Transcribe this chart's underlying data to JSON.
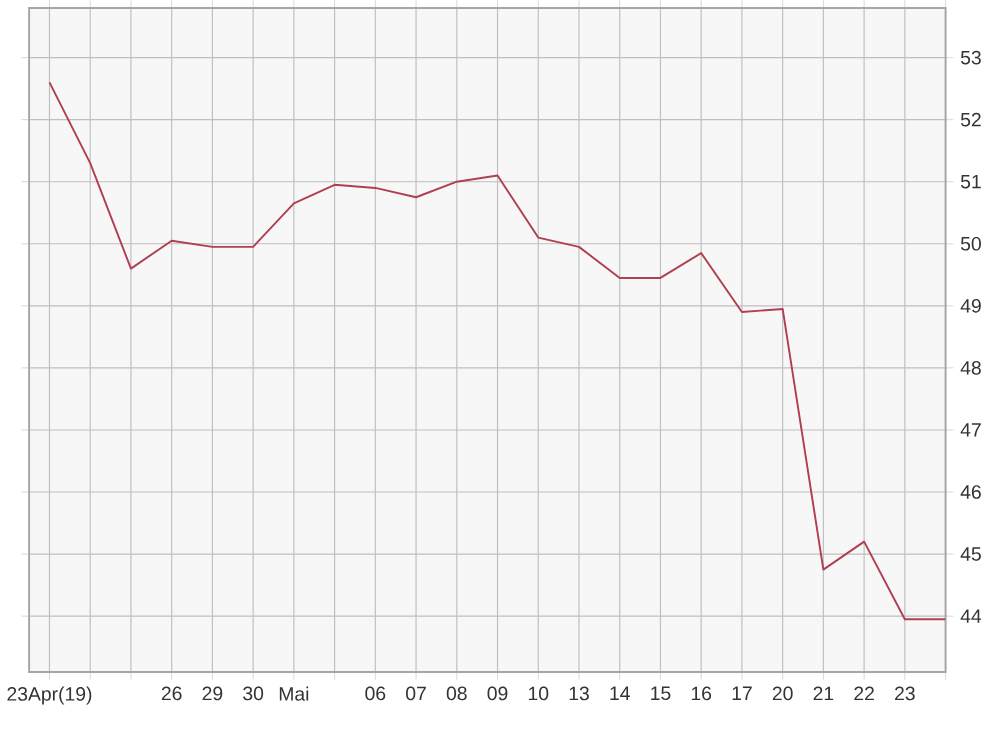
{
  "chart_data": {
    "type": "line",
    "categories": [
      "23Apr(19)",
      null,
      null,
      "26",
      "29",
      "30",
      "Mai",
      null,
      "06",
      "07",
      "08",
      "09",
      "10",
      "13",
      "14",
      "15",
      "16",
      "17",
      "20",
      "21",
      "22",
      "23",
      null
    ],
    "series": [
      {
        "color": "#b04050",
        "values": [
          52.6,
          51.3,
          49.6,
          50.05,
          49.95,
          49.95,
          50.65,
          50.95,
          50.9,
          50.75,
          51.0,
          51.1,
          50.1,
          49.95,
          49.45,
          49.45,
          49.85,
          48.9,
          48.95,
          44.75,
          45.2,
          43.95,
          43.95
        ]
      }
    ],
    "ylim": [
      43.1,
      53.8
    ],
    "yticks": [
      44,
      45,
      46,
      47,
      48,
      49,
      50,
      51,
      52,
      53
    ],
    "grid": true,
    "marker": "none",
    "line_style": "solid"
  }
}
